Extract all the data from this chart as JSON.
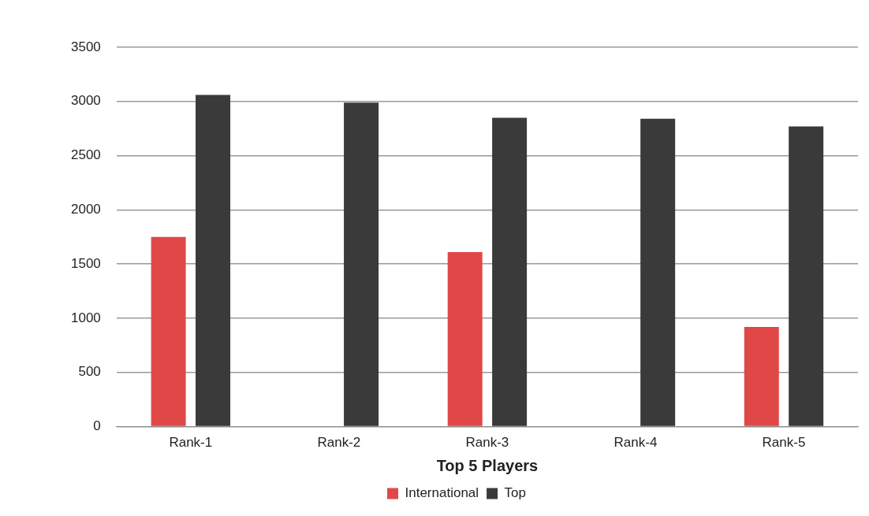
{
  "chart_data": {
    "type": "bar",
    "xlabel": "Top 5 Players",
    "categories": [
      "Rank-1",
      "Rank-2",
      "Rank-3",
      "Rank-4",
      "Rank-5"
    ],
    "series": [
      {
        "name": "International",
        "color": "#e04848",
        "values": [
          1750,
          0,
          1610,
          0,
          920
        ]
      },
      {
        "name": "Top",
        "color": "#3a3a3a",
        "values": [
          3060,
          2990,
          2850,
          2840,
          2770
        ]
      }
    ],
    "ylim": [
      0,
      3500
    ],
    "yticks": [
      0,
      500,
      1000,
      1500,
      2000,
      2500,
      3000,
      3500
    ],
    "grid": "y",
    "legend": "bottom"
  }
}
